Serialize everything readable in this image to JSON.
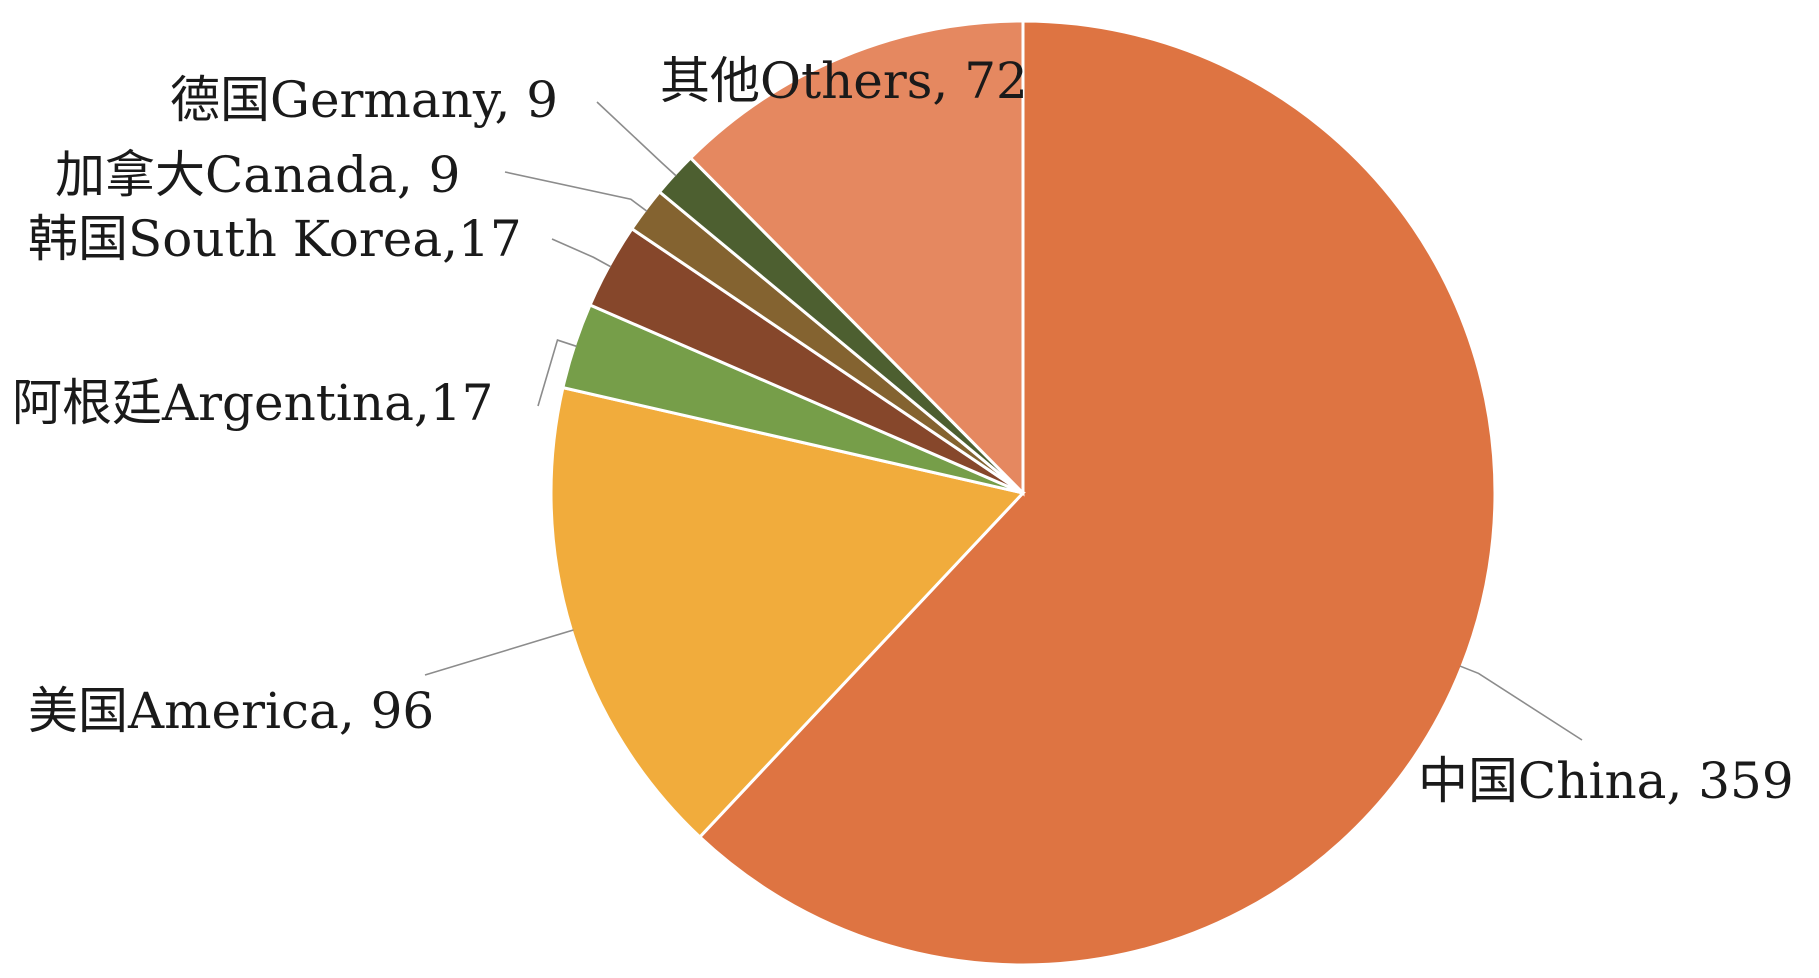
{
  "chart_data": {
    "type": "pie",
    "title": "",
    "start_angle_deg": 0,
    "direction": "clockwise",
    "slices": [
      {
        "label": "中国China, 359",
        "category": "中国China",
        "value": 359,
        "color": "#DE7442"
      },
      {
        "label": "美国America, 96",
        "category": "美国America",
        "value": 96,
        "color": "#F1AC3C"
      },
      {
        "label": "阿根廷Argentina,17",
        "category": "阿根廷Argentina",
        "value": 17,
        "color": "#769E49"
      },
      {
        "label": "韩国South Korea,17",
        "category": "韩国South Korea",
        "value": 17,
        "color": "#86472B"
      },
      {
        "label": "加拿大Canada, 9",
        "category": "加拿大Canada",
        "value": 9,
        "color": "#846330"
      },
      {
        "label": "德国Germany, 9",
        "category": "德国Germany",
        "value": 9,
        "color": "#4D5F30"
      },
      {
        "label": "其他Others, 72",
        "category": "其他Others",
        "value": 72,
        "color": "#E58860"
      }
    ],
    "legend": "none",
    "labels": "outside-with-leader-lines"
  }
}
